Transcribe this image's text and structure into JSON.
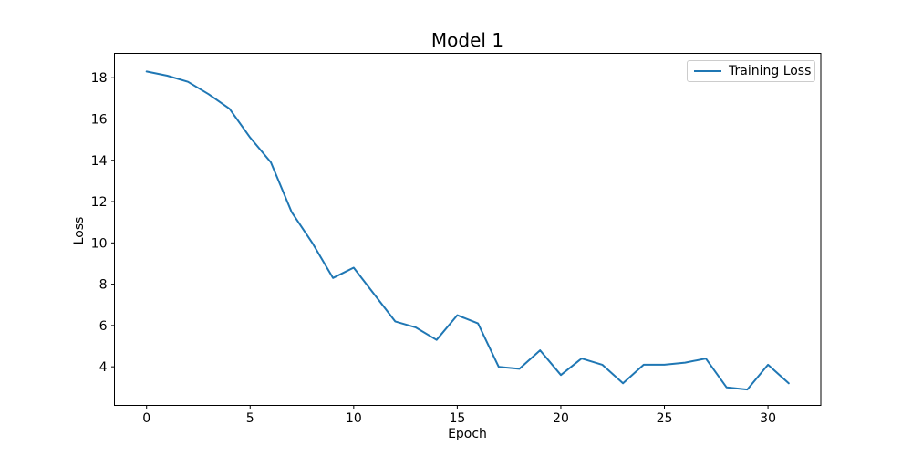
{
  "figure": {
    "background": "#ffffff"
  },
  "chart_data": {
    "type": "line",
    "title": "Model 1",
    "xlabel": "Epoch",
    "ylabel": "Loss",
    "legend": {
      "position": "upper right",
      "entries": [
        "Training Loss"
      ]
    },
    "grid": false,
    "colors": {
      "line": "#1f77b4",
      "axes": "#000000",
      "legend_border": "#cccccc"
    },
    "xticks": [
      0,
      5,
      10,
      15,
      20,
      25,
      30
    ],
    "yticks": [
      4,
      6,
      8,
      10,
      12,
      14,
      16,
      18
    ],
    "xlim": [
      -1.55,
      32.55
    ],
    "ylim": [
      2.13,
      19.18
    ],
    "x": [
      0,
      1,
      2,
      3,
      4,
      5,
      6,
      7,
      8,
      9,
      10,
      11,
      12,
      13,
      14,
      15,
      16,
      17,
      18,
      19,
      20,
      21,
      22,
      23,
      24,
      25,
      26,
      27,
      28,
      29,
      30,
      31
    ],
    "series": [
      {
        "name": "Training Loss",
        "color": "#1f77b4",
        "values": [
          18.3,
          18.1,
          17.8,
          17.2,
          16.5,
          15.1,
          13.9,
          11.5,
          10.0,
          8.3,
          8.8,
          7.5,
          6.2,
          5.9,
          5.3,
          6.5,
          6.1,
          4.0,
          3.9,
          4.8,
          3.6,
          4.4,
          4.1,
          3.2,
          4.1,
          4.1,
          4.2,
          4.4,
          3.0,
          2.9,
          4.1,
          3.2
        ]
      }
    ]
  }
}
